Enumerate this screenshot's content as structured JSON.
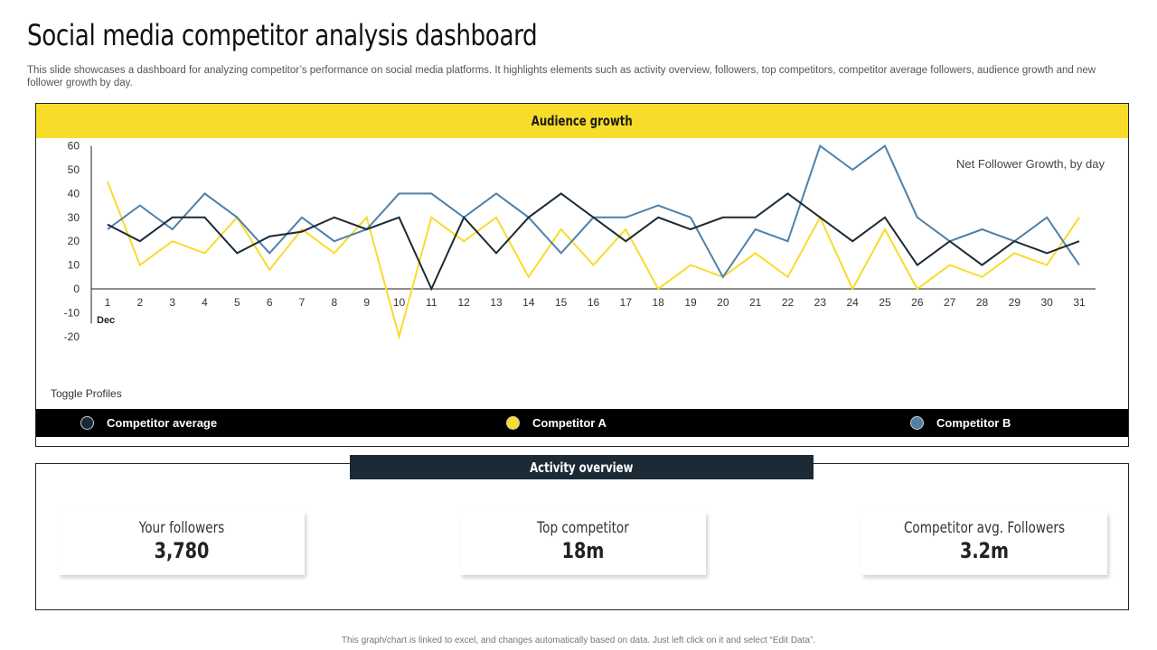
{
  "header": {
    "title": "Social media competitor analysis dashboard",
    "subtitle": "This slide showcases a dashboard for analyzing competitor’s performance on social media platforms. It highlights elements such as activity overview, followers, top competitors, competitor average followers, audience growth and new follower growth by day."
  },
  "audience": {
    "panel_title": "Audience growth",
    "toggle_label": "Toggle Profiles"
  },
  "chart_data": {
    "type": "line",
    "title": "Net Follower Growth, by day",
    "x_caption": "Dec",
    "x": [
      1,
      2,
      3,
      4,
      5,
      6,
      7,
      8,
      9,
      10,
      11,
      12,
      13,
      14,
      15,
      16,
      17,
      18,
      19,
      20,
      21,
      22,
      23,
      24,
      25,
      26,
      27,
      28,
      29,
      30,
      31
    ],
    "ylim": [
      -20,
      60
    ],
    "yticks": [
      60,
      50,
      40,
      30,
      20,
      10,
      0,
      -10,
      -20
    ],
    "series": [
      {
        "name": "Competitor average",
        "color": "#1c2a36",
        "values": [
          27,
          20,
          30,
          30,
          15,
          22,
          24,
          30,
          25,
          30,
          0,
          30,
          15,
          30,
          40,
          30,
          20,
          30,
          25,
          30,
          30,
          40,
          30,
          20,
          30,
          10,
          20,
          10,
          20,
          15,
          20
        ]
      },
      {
        "name": "Competitor A",
        "color": "#f7dc2a",
        "values": [
          45,
          10,
          20,
          15,
          30,
          8,
          25,
          15,
          30,
          -20,
          30,
          20,
          30,
          5,
          25,
          10,
          25,
          0,
          10,
          5,
          15,
          5,
          30,
          0,
          25,
          0,
          10,
          5,
          15,
          10,
          30
        ]
      },
      {
        "name": "Competitor B",
        "color": "#4f81a8",
        "values": [
          25,
          35,
          25,
          40,
          30,
          15,
          30,
          20,
          25,
          40,
          40,
          30,
          40,
          30,
          15,
          30,
          30,
          35,
          30,
          5,
          25,
          20,
          60,
          50,
          60,
          30,
          20,
          25,
          20,
          30,
          10
        ]
      }
    ]
  },
  "legend": [
    {
      "label": "Competitor average",
      "color": "#1c2a36"
    },
    {
      "label": "Competitor A",
      "color": "#f7dc2a"
    },
    {
      "label": "Competitor B",
      "color": "#4f81a8"
    }
  ],
  "activity": {
    "panel_title": "Activity overview",
    "cards": [
      {
        "label": "Your followers",
        "value": "3,780"
      },
      {
        "label": "Top competitor",
        "value": "18m"
      },
      {
        "label": "Competitor avg. Followers",
        "value": "3.2m"
      }
    ]
  },
  "footer": {
    "note": "This graph/chart is linked to excel, and changes automatically based on data. Just left click on it and select “Edit Data”."
  }
}
